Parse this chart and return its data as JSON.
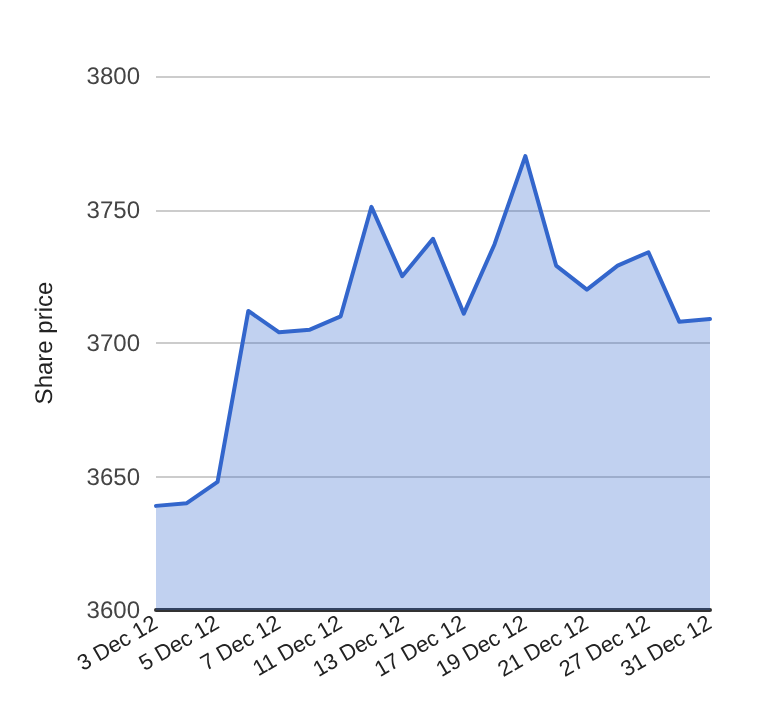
{
  "chart_data": {
    "type": "area",
    "ylabel": "Share price",
    "categories": [
      "3 Dec 12",
      null,
      "5 Dec 12",
      null,
      "7 Dec 12",
      null,
      "11 Dec 12",
      null,
      "13 Dec 12",
      null,
      "17 Dec 12",
      null,
      "19 Dec 12",
      null,
      "21 Dec 12",
      null,
      "27 Dec 12",
      null,
      "31 Dec 12"
    ],
    "series": [
      {
        "color": "#3366cc",
        "values": [
          3639,
          3640,
          3648,
          3712,
          3704,
          3705,
          3710,
          3751,
          3725,
          3739,
          3711,
          3737,
          3770,
          3729,
          3720,
          3729,
          3734,
          3708,
          3709
        ]
      }
    ],
    "ylim": [
      3600,
      3800
    ],
    "yticks": [
      3600,
      3650,
      3700,
      3750,
      3800
    ],
    "grid": "y",
    "marker": "none",
    "line_style": "solid"
  }
}
